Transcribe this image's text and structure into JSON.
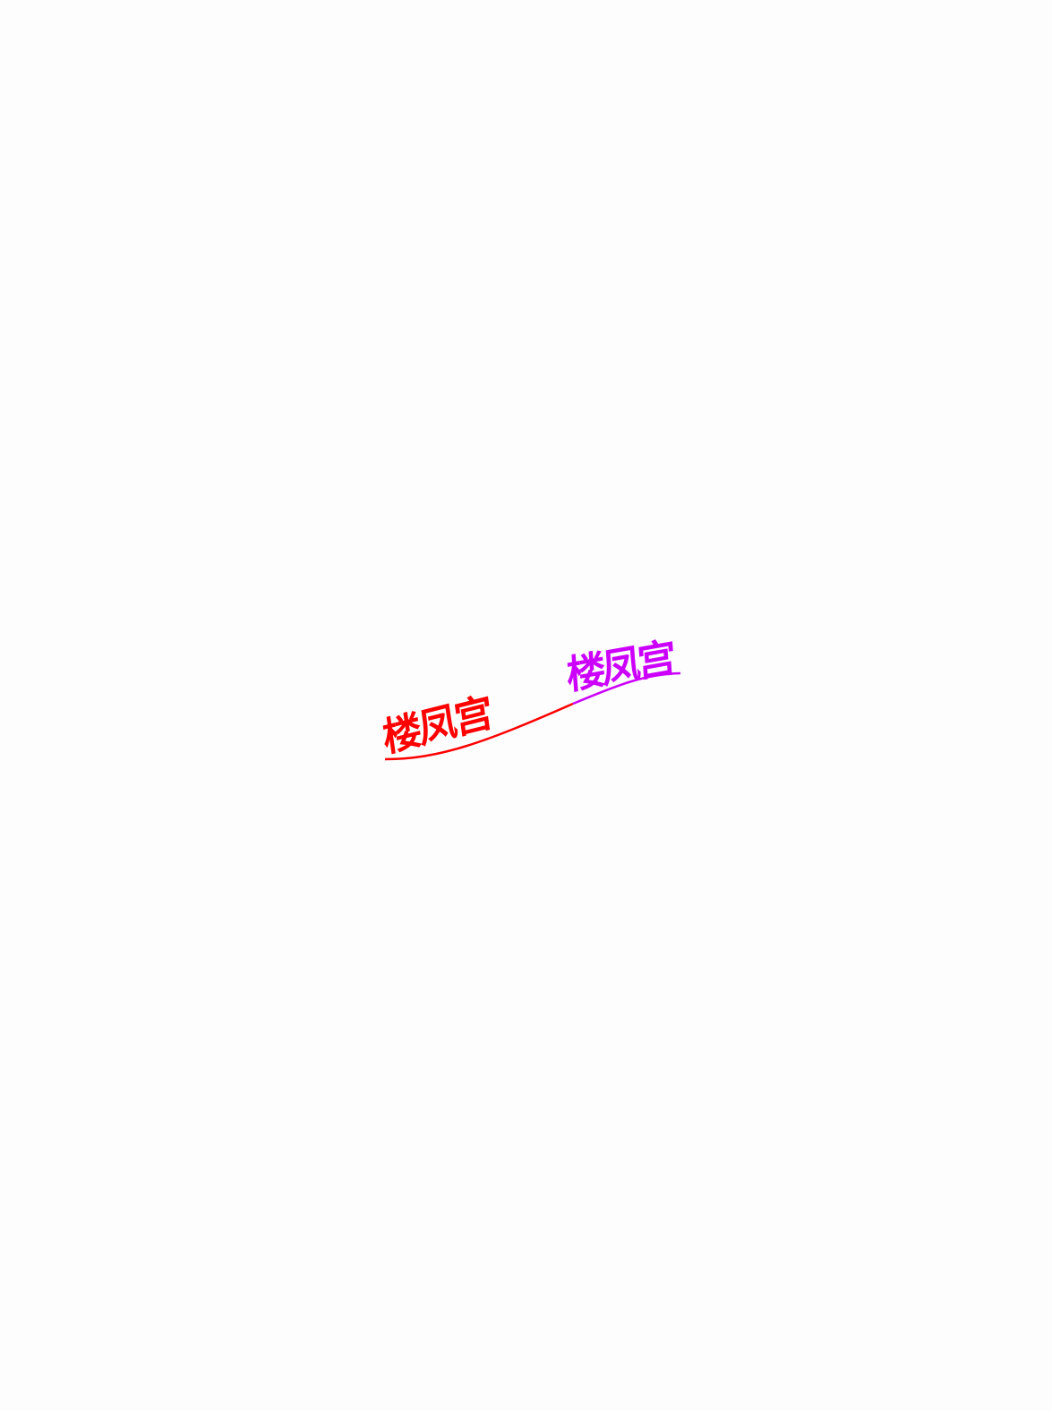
{
  "logo": {
    "left_text": "楼凤宫",
    "right_text": "楼凤宫",
    "colors": {
      "left": "#ff0000",
      "right": "#cc00ff",
      "background": "#fdfdfd"
    }
  }
}
